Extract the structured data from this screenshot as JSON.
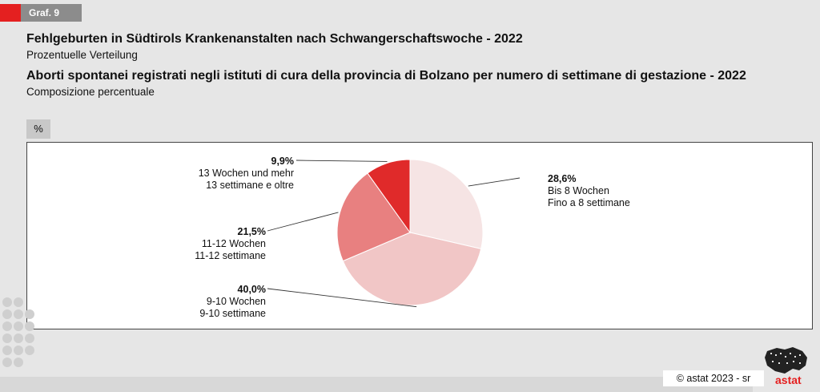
{
  "tag": "Graf. 9",
  "title_de": "Fehlgeburten in Südtirols Krankenanstalten nach Schwangerschaftswoche - 2022",
  "subtitle_de": "Prozentuelle Verteilung",
  "title_it": "Aborti spontanei registrati negli istituti di cura della provincia di Bolzano per numero di settimane di gestazione - 2022",
  "subtitle_it": "Composizione percentuale",
  "unit": "%",
  "copyright": "astat 2023 - sr",
  "logo_text": "astat",
  "chart_data": {
    "type": "pie",
    "slices": [
      {
        "pct": "28,6%",
        "value": 28.6,
        "label_de": "Bis 8 Wochen",
        "label_it": "Fino a 8 settimane",
        "color": "#f6e4e4"
      },
      {
        "pct": "40,0%",
        "value": 40.0,
        "label_de": "9-10 Wochen",
        "label_it": "9-10 settimane",
        "color": "#f1c6c6"
      },
      {
        "pct": "21,5%",
        "value": 21.5,
        "label_de": "11-12 Wochen",
        "label_it": "11-12 settimane",
        "color": "#e88080"
      },
      {
        "pct": "9,9%",
        "value": 9.9,
        "label_de": "13 Wochen und mehr",
        "label_it": "13 settimane e oltre",
        "color": "#e02a2a"
      }
    ]
  }
}
